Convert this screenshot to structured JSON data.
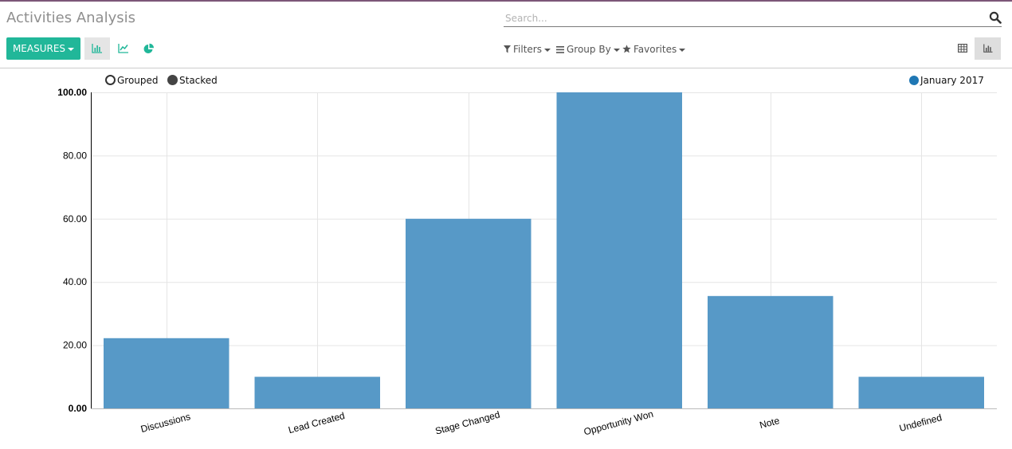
{
  "header": {
    "title": "Activities Analysis",
    "search_placeholder": "Search..."
  },
  "toolbar": {
    "measures_label": "MEASURES",
    "filters_label": "Filters",
    "groupby_label": "Group By",
    "favorites_label": "Favorites"
  },
  "legend": {
    "grouped_label": "Grouped",
    "stacked_label": "Stacked",
    "series_label": "January 2017"
  },
  "colors": {
    "accent": "#21b799",
    "bar": "#5799c7",
    "series_dot": "#1f77b4"
  },
  "chart_data": {
    "type": "bar",
    "categories": [
      "Discussions",
      "Lead Created",
      "Stage Changed",
      "Opportunity Won",
      "Note",
      "Undefined"
    ],
    "series": [
      {
        "name": "January 2017",
        "values": [
          22.22,
          10.0,
          60.0,
          100.0,
          35.56,
          10.0
        ]
      }
    ],
    "ylim": [
      0,
      100
    ],
    "yticks": [
      "0.00",
      "20.00",
      "40.00",
      "60.00",
      "80.00",
      "100.00"
    ],
    "grid": true,
    "legend_position": "top-right"
  }
}
